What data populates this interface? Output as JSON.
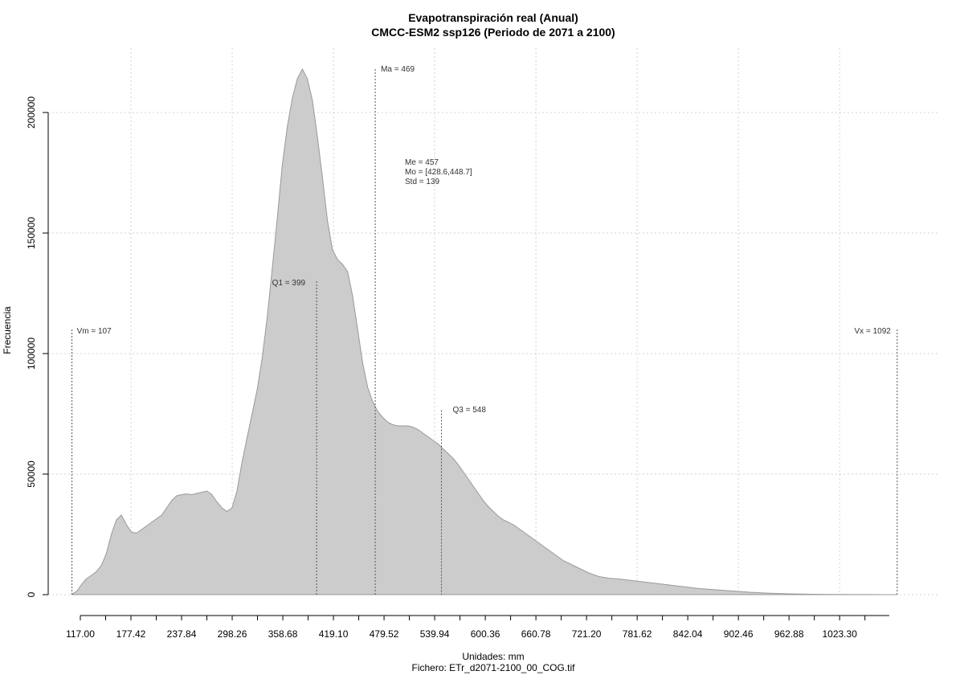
{
  "chart_data": {
    "type": "area",
    "title": "Evapotranspiración real (Anual)",
    "subtitle": "CMCC-ESM2 ssp126 (Periodo de 2071 a 2100)",
    "xlabel": "Unidades: mm",
    "file_label": "Fichero: ETr_d2071-2100_00_COG.tif",
    "ylabel": "Frecuencia",
    "xlim": [
      107,
      1092
    ],
    "ylim": [
      0,
      200000
    ],
    "x_ticks": [
      "117.00",
      "177.42",
      "237.84",
      "298.26",
      "358.68",
      "419.10",
      "479.52",
      "539.94",
      "600.36",
      "660.78",
      "721.20",
      "781.62",
      "842.04",
      "902.46",
      "962.88",
      "1023.30"
    ],
    "y_ticks": [
      "0",
      "50000",
      "100000",
      "150000",
      "200000"
    ],
    "grid": true,
    "fill_color": "#cccccc",
    "line_color": "#999999",
    "x": [
      107,
      113,
      118,
      124,
      130,
      136,
      142,
      148,
      154,
      160,
      166,
      172,
      178,
      184,
      190,
      196,
      202,
      208,
      214,
      220,
      226,
      232,
      238,
      244,
      250,
      256,
      262,
      268,
      274,
      280,
      286,
      292,
      298,
      304,
      310,
      316,
      322,
      328,
      334,
      340,
      346,
      352,
      358,
      364,
      370,
      376,
      382,
      388,
      394,
      400,
      406,
      412,
      418,
      424,
      430,
      436,
      442,
      448,
      454,
      460,
      466,
      472,
      478,
      484,
      490,
      496,
      502,
      508,
      514,
      520,
      526,
      532,
      538,
      544,
      550,
      556,
      562,
      568,
      574,
      580,
      586,
      592,
      598,
      604,
      610,
      616,
      622,
      628,
      634,
      640,
      646,
      652,
      658,
      664,
      670,
      676,
      682,
      688,
      694,
      700,
      712,
      724,
      736,
      748,
      760,
      772,
      784,
      796,
      808,
      820,
      832,
      844,
      856,
      868,
      880,
      892,
      904,
      916,
      928,
      940,
      952,
      964,
      976,
      988,
      1000,
      1012,
      1024,
      1036,
      1048,
      1060,
      1072,
      1084,
      1092
    ],
    "y": [
      200,
      1500,
      4000,
      6500,
      8000,
      9500,
      12000,
      17000,
      25000,
      31000,
      33000,
      29000,
      26000,
      25500,
      27000,
      28500,
      30000,
      31500,
      33000,
      36000,
      39000,
      41000,
      41500,
      41800,
      41500,
      42000,
      42500,
      43000,
      41500,
      38500,
      36000,
      34500,
      36000,
      43000,
      55000,
      65000,
      75000,
      85000,
      98000,
      115000,
      135000,
      156000,
      178000,
      194000,
      206000,
      214000,
      218000,
      214000,
      205000,
      190000,
      173000,
      155000,
      143000,
      139000,
      137000,
      134000,
      124000,
      110000,
      96000,
      86000,
      80000,
      76000,
      73500,
      71500,
      70500,
      70000,
      70000,
      70000,
      69500,
      68500,
      67000,
      65500,
      64000,
      62500,
      60500,
      58500,
      56500,
      54000,
      51000,
      48000,
      45000,
      42000,
      39000,
      36500,
      34500,
      32500,
      31000,
      30000,
      29000,
      27500,
      26000,
      24500,
      23000,
      21500,
      20000,
      18500,
      17000,
      15500,
      14000,
      13000,
      11000,
      9000,
      7500,
      6800,
      6500,
      6000,
      5500,
      5000,
      4500,
      4000,
      3500,
      3000,
      2500,
      2200,
      1900,
      1600,
      1300,
      1000,
      800,
      600,
      450,
      350,
      250,
      180,
      130,
      90,
      60,
      40,
      30,
      20,
      10,
      5,
      0
    ],
    "markers": [
      {
        "label": "Vm = 107",
        "x": 107,
        "y_top": 110000
      },
      {
        "label": "Q1 = 399",
        "x": 399,
        "y_top": 130000
      },
      {
        "label": "Ma = 469",
        "x": 469,
        "y_top": 218000
      },
      {
        "label": "Q3 = 548",
        "x": 548,
        "y_top": 76500
      },
      {
        "label": "Vx = 1092",
        "x": 1092,
        "y_top": 110000
      }
    ],
    "stats": [
      "Me = 457",
      "Mo = [428.6,448.7]",
      "Std = 139"
    ]
  }
}
